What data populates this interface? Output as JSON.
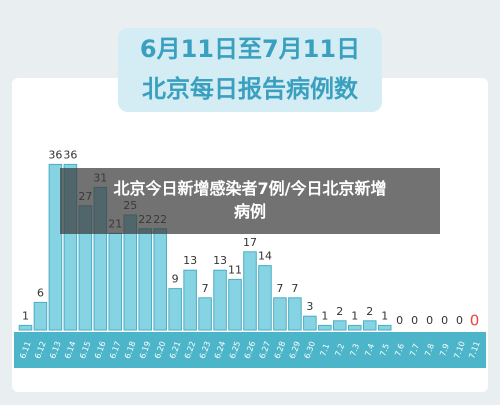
{
  "chart_data": {
    "type": "bar",
    "title": "6月11日至7月11日",
    "subtitle": "北京每日报告病例数",
    "annotation": "北京今日新增感染者7例/今日北京新增病例",
    "categories": [
      "6.11",
      "6.12",
      "6.13",
      "6.14",
      "6.15",
      "6.16",
      "6.17",
      "6.18",
      "6.19",
      "6.20",
      "6.21",
      "6.22",
      "6.23",
      "6.24",
      "6.25",
      "6.26",
      "6.27",
      "6.28",
      "6.29",
      "6.30",
      "7.1",
      "7.2",
      "7.3",
      "7.4",
      "7.5",
      "7.6",
      "7.7",
      "7.8",
      "7.9",
      "7.10",
      "7.11"
    ],
    "values": [
      1,
      6,
      36,
      36,
      27,
      31,
      21,
      25,
      22,
      22,
      9,
      13,
      7,
      13,
      11,
      17,
      14,
      7,
      7,
      3,
      1,
      2,
      1,
      2,
      1,
      0,
      0,
      0,
      0,
      0,
      0
    ],
    "color": "#86d3e3",
    "highlight_color": "#e8463c"
  }
}
